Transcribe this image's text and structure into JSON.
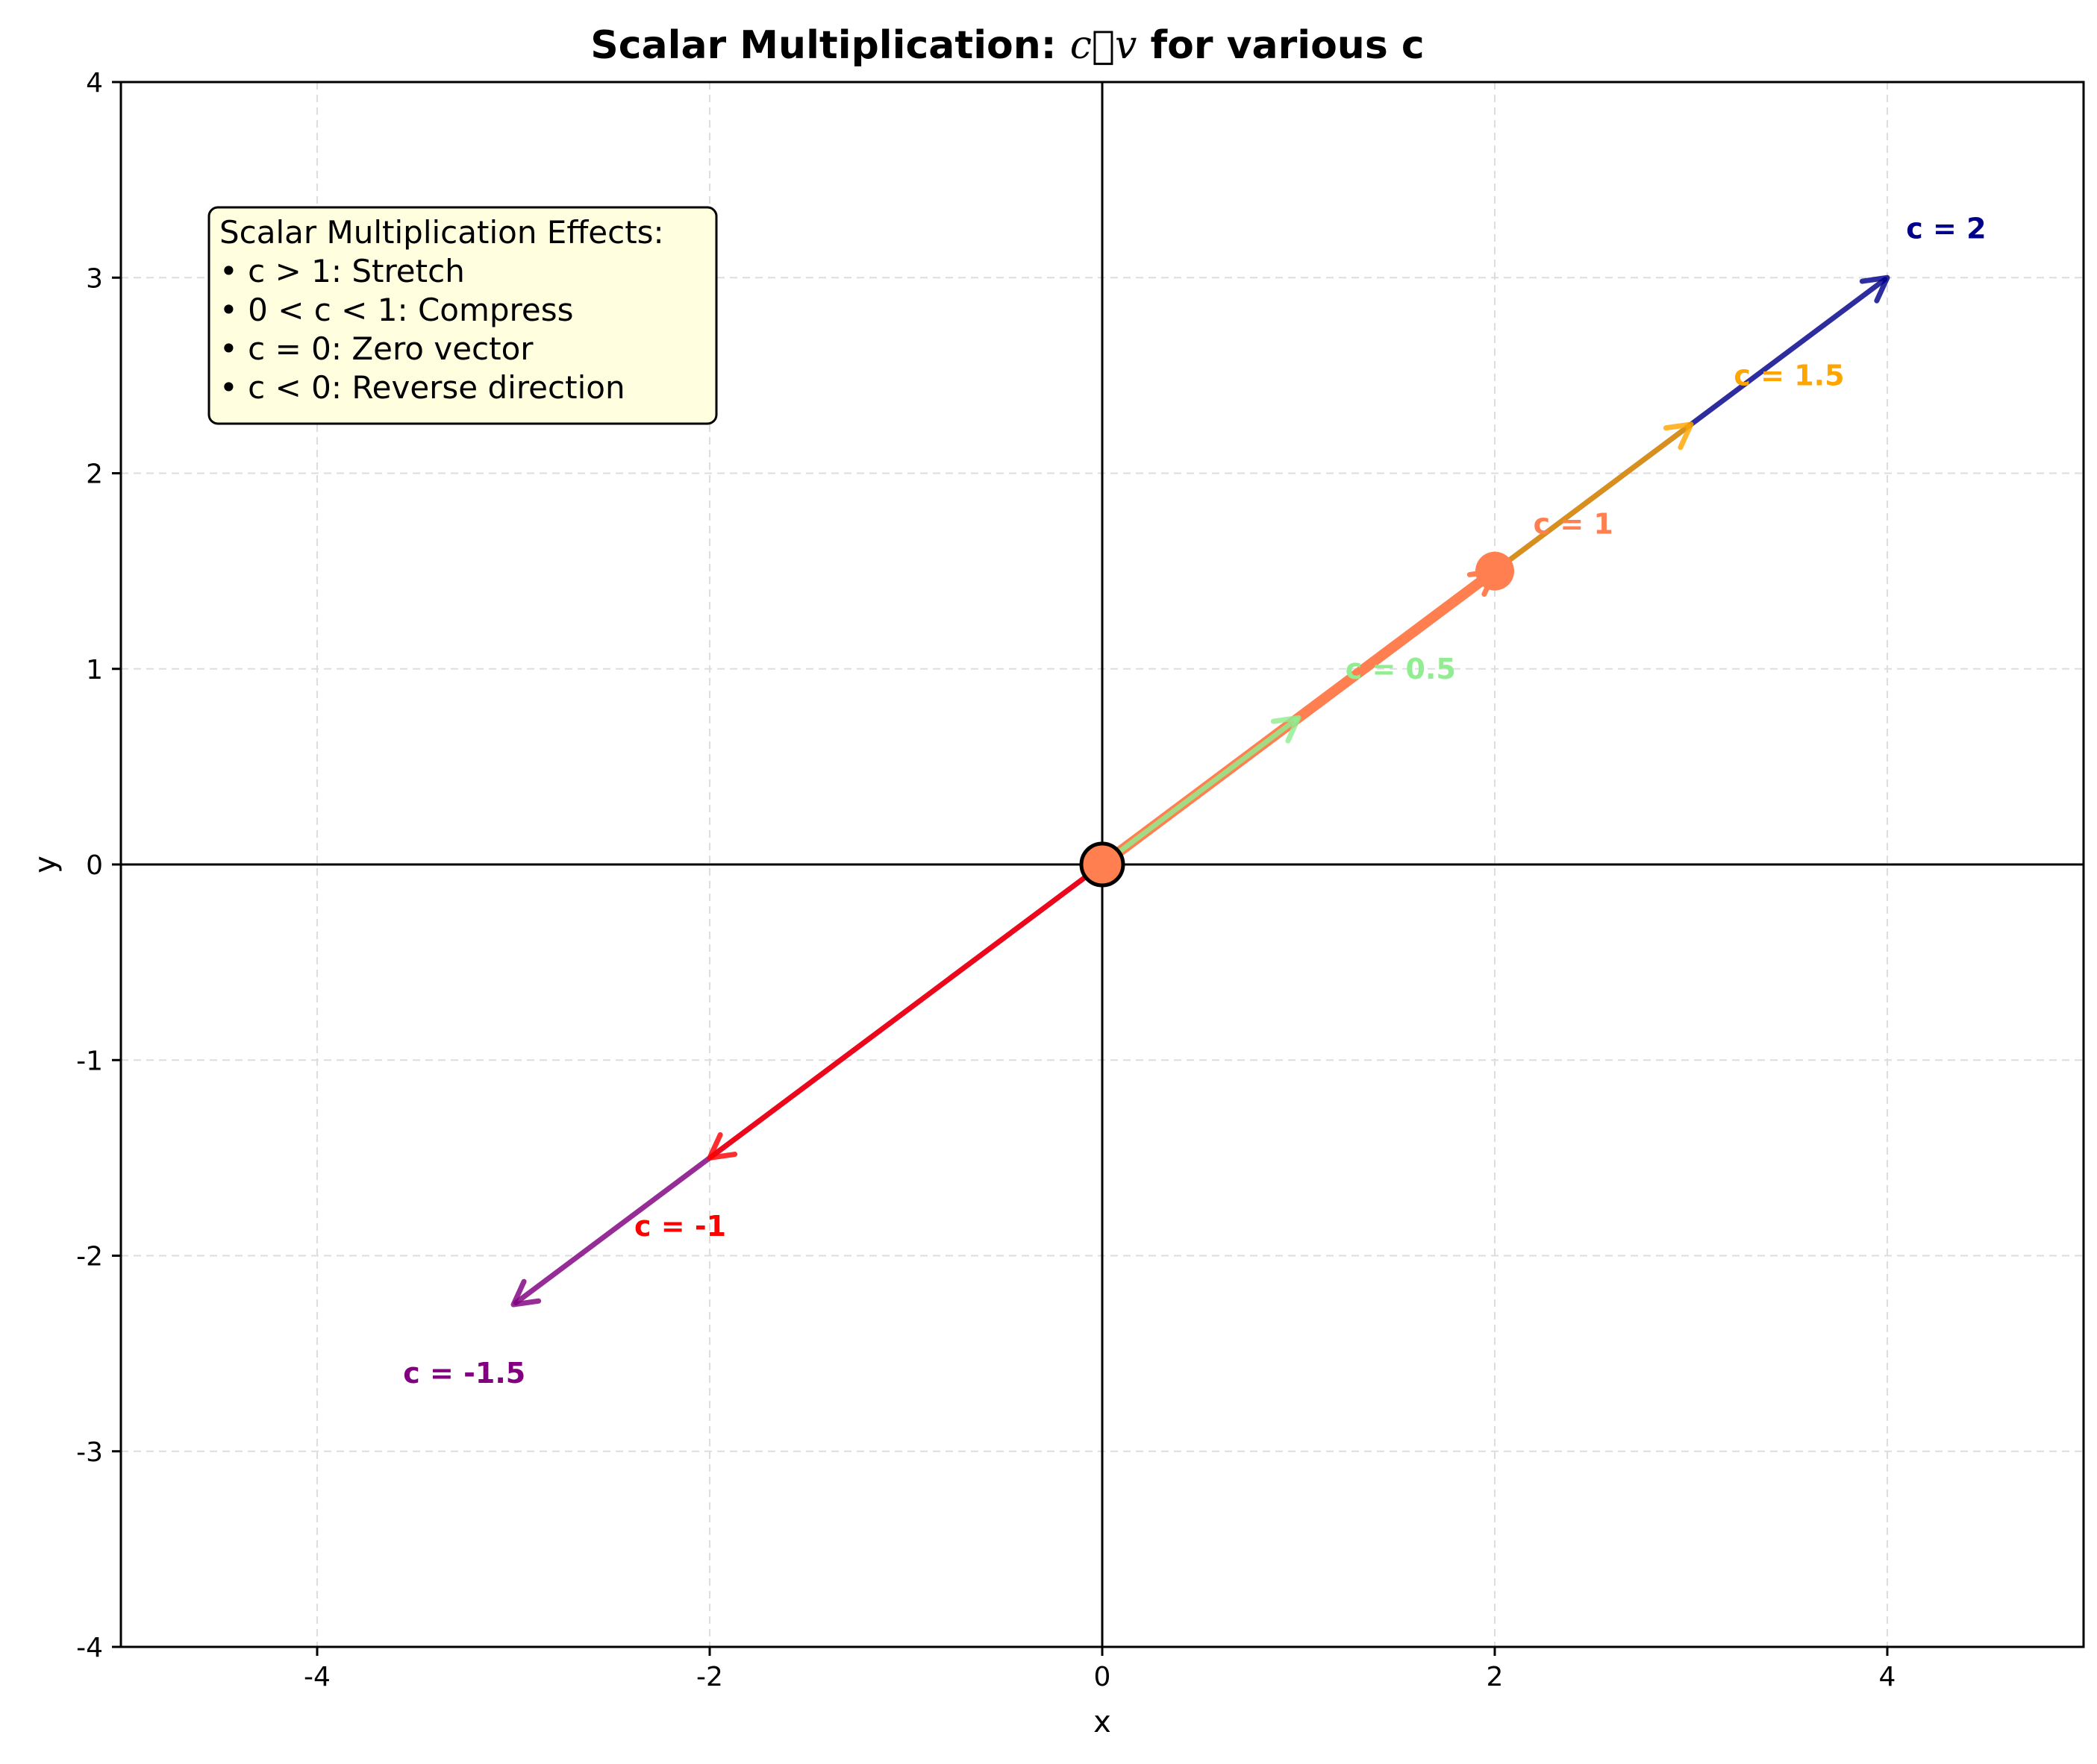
{
  "chart_data": {
    "type": "vector",
    "title_prefix": "Scalar Multiplication: ",
    "title_math": "c⃗v",
    "title_suffix": " for various c",
    "xlabel": "x",
    "ylabel": "y",
    "xlim": [
      -5,
      5
    ],
    "ylim": [
      -4,
      4
    ],
    "xticks": [
      -4,
      -2,
      0,
      2,
      4
    ],
    "yticks": [
      -4,
      -3,
      -2,
      -1,
      0,
      1,
      2,
      3,
      4
    ],
    "grid": true,
    "base_vector": [
      2,
      1.5
    ],
    "origin": [
      0,
      0
    ],
    "series": [
      {
        "c": 2,
        "label": "c = 2",
        "end": [
          4,
          3
        ],
        "color": "#00008B",
        "label_at": [
          4.3,
          3.25
        ]
      },
      {
        "c": 1.5,
        "label": "c = 1.5",
        "end": [
          3,
          2.25
        ],
        "color": "#FFA500",
        "label_at": [
          3.5,
          2.5
        ]
      },
      {
        "c": 1,
        "label": "c = 1",
        "end": [
          2,
          1.5
        ],
        "color": "#FF7F50",
        "label_at": [
          2.4,
          1.74
        ]
      },
      {
        "c": 0.5,
        "label": "c = 0.5",
        "end": [
          1,
          0.75
        ],
        "color": "#90EE90",
        "label_at": [
          1.52,
          1.0
        ]
      },
      {
        "c": -1,
        "label": "c = -1",
        "end": [
          -2,
          -1.5
        ],
        "color": "#FF0000",
        "label_at": [
          -2.15,
          -1.85
        ]
      },
      {
        "c": -1.5,
        "label": "c = -1.5",
        "end": [
          -3,
          -2.25
        ],
        "color": "#800080",
        "label_at": [
          -3.25,
          -2.6
        ]
      }
    ],
    "annotation": {
      "lines": [
        "Scalar Multiplication Effects:",
        "• c > 1: Stretch",
        "• 0 < c < 1: Compress",
        "• c = 0: Zero vector",
        "• c < 0: Reverse direction"
      ],
      "background": "#FFFFE0"
    }
  }
}
